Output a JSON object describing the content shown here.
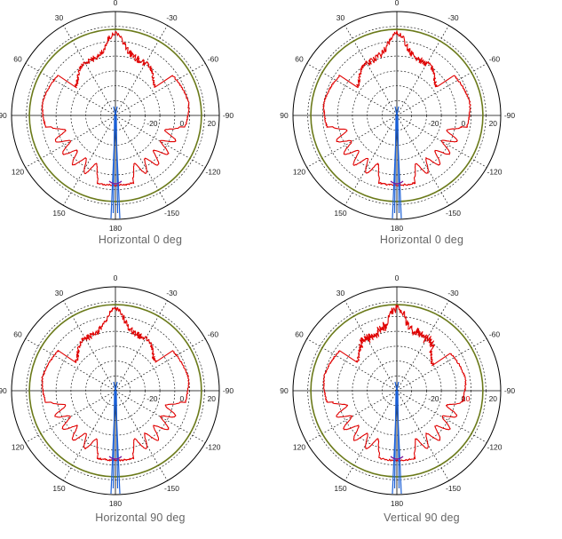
{
  "colors": {
    "outer_ring": "#000000",
    "grid": "#000000",
    "reference_ring": "#6b7a1a",
    "co_polar": "#e00000",
    "cross_polar": "#1a5fd6",
    "near_bottom": "#7a1a9a"
  },
  "chart_data": [
    {
      "type": "polar",
      "caption": "Horizontal 0 deg",
      "angle_labels": [
        "0",
        "-30",
        "-60",
        "-90",
        "-120",
        "-150",
        "180",
        "150",
        "120",
        "90",
        "60",
        "30"
      ],
      "radial_labels": [
        "-20",
        "0",
        "20"
      ],
      "radial_range": [
        -40,
        30
      ],
      "grid": true,
      "reference_ring_db": 18
    },
    {
      "type": "polar",
      "caption": "Horizontal 0 deg",
      "angle_labels": [
        "0",
        "-30",
        "-60",
        "-90",
        "-120",
        "-150",
        "180",
        "150",
        "120",
        "90",
        "60",
        "30"
      ],
      "radial_labels": [
        "-20",
        "0",
        "20"
      ],
      "radial_range": [
        -40,
        30
      ],
      "grid": true,
      "reference_ring_db": 18
    },
    {
      "type": "polar",
      "caption": "Horizontal 90 deg",
      "angle_labels": [
        "0",
        "-30",
        "-60",
        "-90",
        "-120",
        "-150",
        "180",
        "150",
        "120",
        "90",
        "60",
        "30"
      ],
      "radial_labels": [
        "-20",
        "0",
        "20"
      ],
      "radial_range": [
        -40,
        30
      ],
      "grid": true,
      "reference_ring_db": 18
    },
    {
      "type": "polar",
      "caption": "Vertical 90 deg",
      "angle_labels": [
        "0",
        "-30",
        "-60",
        "-90",
        "-120",
        "-150",
        "180",
        "150",
        "120",
        "90",
        "60",
        "30"
      ],
      "radial_labels": [
        "-20",
        "0",
        "20"
      ],
      "extra_radial_label": "10",
      "radial_range": [
        -40,
        30
      ],
      "grid": true,
      "reference_ring_db": 18
    }
  ]
}
